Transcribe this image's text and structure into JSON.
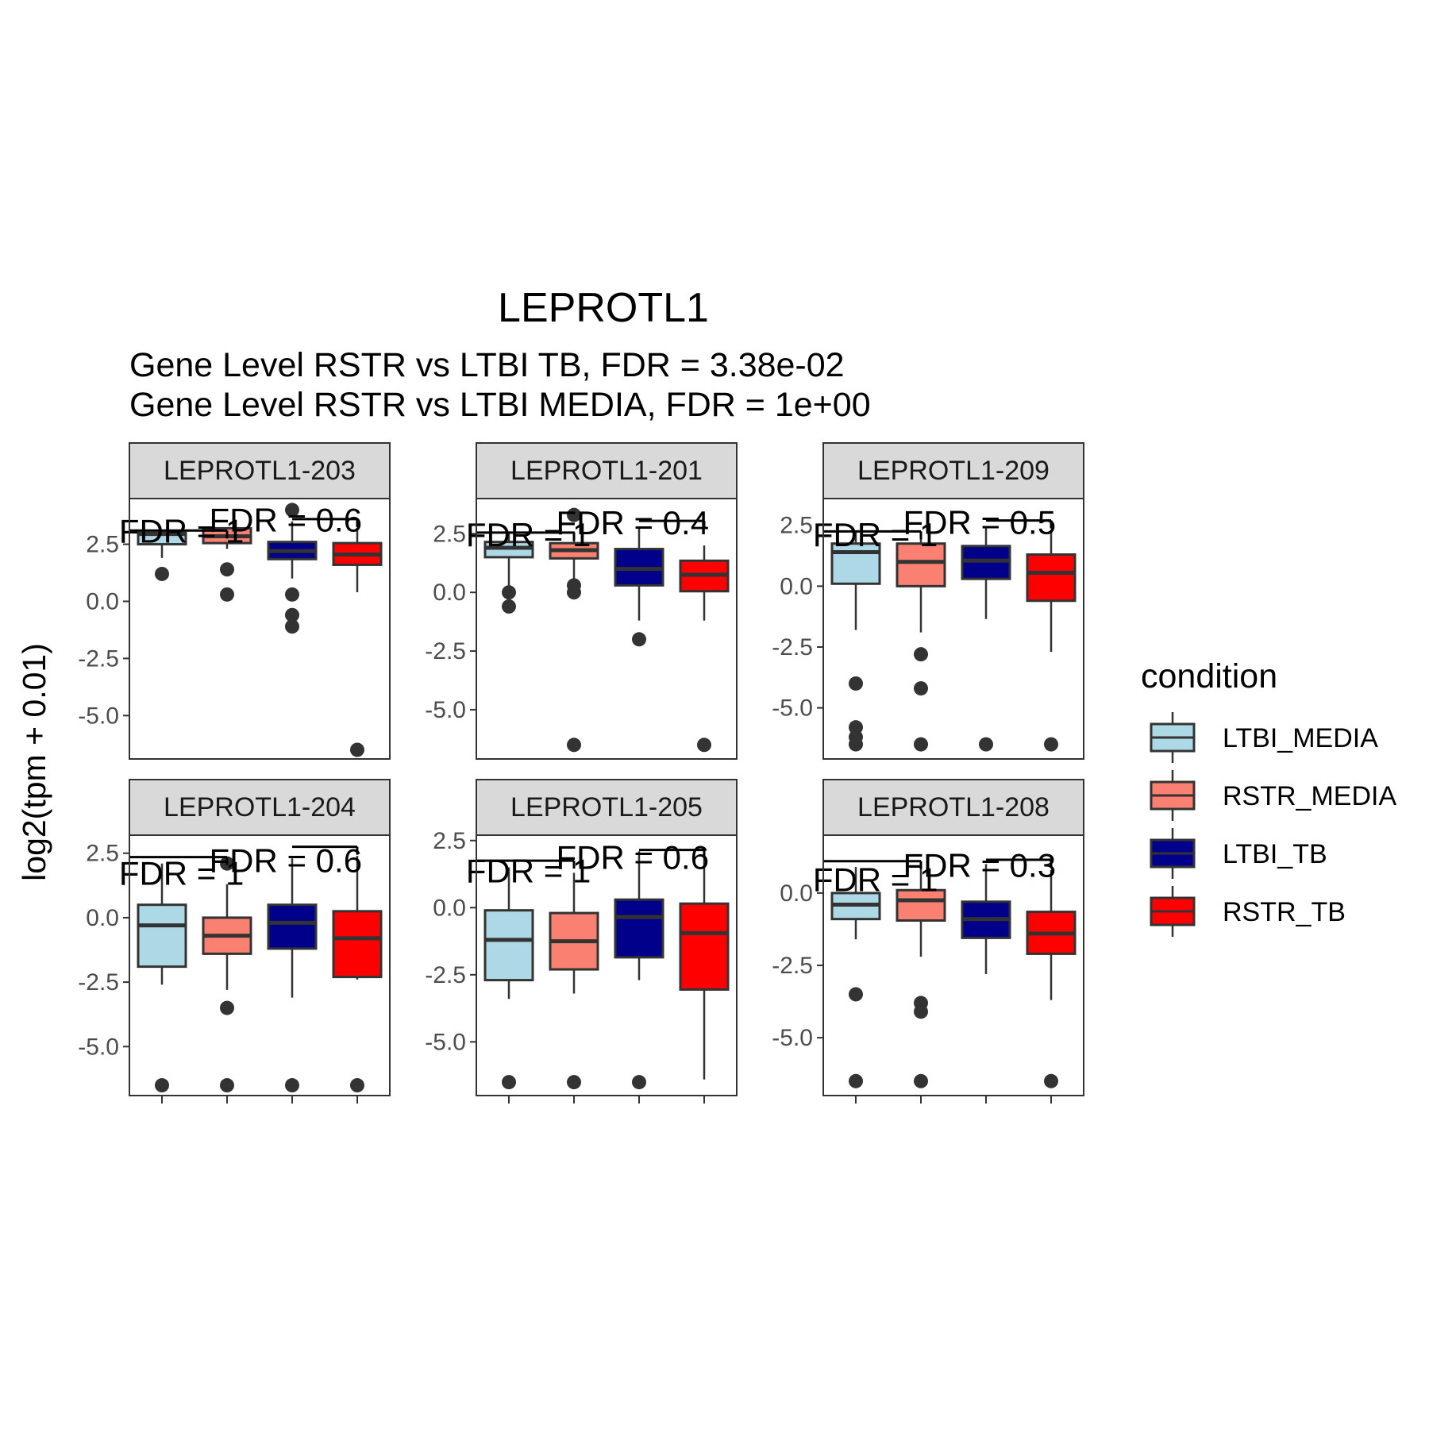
{
  "chart_data": {
    "type": "box",
    "title": "LEPROTL1",
    "subtitle_lines": [
      "Gene Level RSTR vs LTBI TB, FDR =  3.38e-02",
      "Gene Level RSTR vs LTBI MEDIA, FDR =  1e+00"
    ],
    "ylabel": "log2(tpm + 0.01)",
    "legend": {
      "title": "condition",
      "position": "right",
      "items": [
        {
          "name": "LTBI_MEDIA",
          "color": "#add8e6"
        },
        {
          "name": "RSTR_MEDIA",
          "color": "#fa8072"
        },
        {
          "name": "LTBI_TB",
          "color": "#00008b"
        },
        {
          "name": "RSTR_TB",
          "color": "#ff0000"
        }
      ]
    },
    "conditions": [
      "LTBI_MEDIA",
      "RSTR_MEDIA",
      "LTBI_TB",
      "RSTR_TB"
    ],
    "facets": [
      {
        "label": "LEPROTL1-203",
        "ylim": [
          -6.9,
          4.5
        ],
        "yticks": [
          "2.5",
          "0.0",
          "-2.5",
          "-5.0"
        ],
        "ytick_values": [
          2.5,
          0,
          -2.5,
          -5
        ],
        "fdr_labels": [
          {
            "text": "FDR =  1",
            "x": 1.3,
            "y": 3.05
          },
          {
            "text": "FDR =  0.6",
            "x": 2.9,
            "y": 3.55
          }
        ],
        "brackets": [
          {
            "from": 0.5,
            "to": 2.0,
            "y": 3.1
          },
          {
            "from": 3.0,
            "to": 4.0,
            "y": 3.6
          }
        ],
        "boxes": [
          {
            "group": "LTBI_MEDIA",
            "q1": 2.5,
            "median": 2.95,
            "q3": 3.0,
            "wlo": 1.9,
            "whi": 3.05,
            "outliers": [
              1.2
            ]
          },
          {
            "group": "RSTR_MEDIA",
            "q1": 2.55,
            "median": 2.85,
            "q3": 3.2,
            "wlo": 2.3,
            "whi": 3.25,
            "outliers": [
              1.4,
              0.3
            ]
          },
          {
            "group": "LTBI_TB",
            "q1": 1.85,
            "median": 2.2,
            "q3": 2.6,
            "wlo": 1.0,
            "whi": 3.5,
            "outliers": [
              4.0,
              0.3,
              -0.6,
              -1.1
            ]
          },
          {
            "group": "RSTR_TB",
            "q1": 1.6,
            "median": 2.05,
            "q3": 2.55,
            "wlo": 0.4,
            "whi": 3.1,
            "outliers": [
              -6.5
            ]
          }
        ]
      },
      {
        "label": "LEPROTL1-201",
        "ylim": [
          -7.1,
          4.0
        ],
        "yticks": [
          "2.5",
          "0.0",
          "-2.5",
          "-5.0"
        ],
        "ytick_values": [
          2.5,
          0,
          -2.5,
          -5
        ],
        "fdr_labels": [
          {
            "text": "FDR =  1",
            "x": 1.3,
            "y": 2.45
          },
          {
            "text": "FDR =  0.4",
            "x": 2.9,
            "y": 2.95
          }
        ],
        "brackets": [
          {
            "from": 0.5,
            "to": 2.0,
            "y": 2.55
          },
          {
            "from": 3.0,
            "to": 4.0,
            "y": 3.05
          }
        ],
        "boxes": [
          {
            "group": "LTBI_MEDIA",
            "q1": 1.5,
            "median": 1.9,
            "q3": 2.15,
            "wlo": 0.2,
            "whi": 2.5,
            "outliers": [
              0.0,
              -0.6
            ]
          },
          {
            "group": "RSTR_MEDIA",
            "q1": 1.45,
            "median": 1.8,
            "q3": 2.1,
            "wlo": 0.5,
            "whi": 2.6,
            "outliers": [
              3.3,
              0.3,
              0.0,
              -6.5
            ]
          },
          {
            "group": "LTBI_TB",
            "q1": 0.3,
            "median": 1.0,
            "q3": 1.85,
            "wlo": -1.2,
            "whi": 2.8,
            "outliers": [
              -2.0
            ]
          },
          {
            "group": "RSTR_TB",
            "q1": 0.05,
            "median": 0.75,
            "q3": 1.35,
            "wlo": -1.2,
            "whi": 2.0,
            "outliers": [
              -6.5
            ]
          }
        ]
      },
      {
        "label": "LEPROTL1-209",
        "ylim": [
          -7.1,
          3.6
        ],
        "yticks": [
          "2.5",
          "0.0",
          "-2.5",
          "-5.0"
        ],
        "ytick_values": [
          2.5,
          0,
          -2.5,
          -5
        ],
        "fdr_labels": [
          {
            "text": "FDR =  1",
            "x": 1.3,
            "y": 2.1
          },
          {
            "text": "FDR =  0.5",
            "x": 2.9,
            "y": 2.6
          }
        ],
        "brackets": [
          {
            "from": 0.5,
            "to": 2.0,
            "y": 2.25
          },
          {
            "from": 3.0,
            "to": 4.0,
            "y": 2.7
          }
        ],
        "boxes": [
          {
            "group": "LTBI_MEDIA",
            "q1": 0.1,
            "median": 1.4,
            "q3": 1.75,
            "wlo": -1.8,
            "whi": 2.2,
            "outliers": [
              -4.0,
              -5.8,
              -6.2,
              -6.5
            ]
          },
          {
            "group": "RSTR_MEDIA",
            "q1": 0.0,
            "median": 1.0,
            "q3": 1.75,
            "wlo": -1.9,
            "whi": 2.2,
            "outliers": [
              -2.8,
              -4.2,
              -6.5
            ]
          },
          {
            "group": "LTBI_TB",
            "q1": 0.3,
            "median": 1.05,
            "q3": 1.65,
            "wlo": -1.35,
            "whi": 2.4,
            "outliers": [
              -6.5
            ]
          },
          {
            "group": "RSTR_TB",
            "q1": -0.6,
            "median": 0.55,
            "q3": 1.3,
            "wlo": -2.7,
            "whi": 2.3,
            "outliers": [
              -6.5
            ]
          }
        ]
      },
      {
        "label": "LEPROTL1-204",
        "ylim": [
          -6.9,
          3.2
        ],
        "yticks": [
          "2.5",
          "0.0",
          "-2.5",
          "-5.0"
        ],
        "ytick_values": [
          2.5,
          0,
          -2.5,
          -5
        ],
        "fdr_labels": [
          {
            "text": "FDR =  1",
            "x": 1.3,
            "y": 1.7
          },
          {
            "text": "FDR =  0.6",
            "x": 2.9,
            "y": 2.2
          }
        ],
        "brackets": [
          {
            "from": 0.5,
            "to": 2.0,
            "y": 2.35
          },
          {
            "from": 3.0,
            "to": 4.0,
            "y": 2.75
          }
        ],
        "boxes": [
          {
            "group": "LTBI_MEDIA",
            "q1": -1.9,
            "median": -0.3,
            "q3": 0.5,
            "wlo": -2.6,
            "whi": 2.1,
            "outliers": [
              -6.5
            ]
          },
          {
            "group": "RSTR_MEDIA",
            "q1": -1.4,
            "median": -0.7,
            "q3": 0.0,
            "wlo": -2.8,
            "whi": 1.3,
            "outliers": [
              2.1,
              -3.5,
              -6.5
            ]
          },
          {
            "group": "LTBI_TB",
            "q1": -1.2,
            "median": -0.2,
            "q3": 0.5,
            "wlo": -3.1,
            "whi": 2.3,
            "outliers": [
              -6.5
            ]
          },
          {
            "group": "RSTR_TB",
            "q1": -2.3,
            "median": -0.8,
            "q3": 0.25,
            "wlo": -2.4,
            "whi": 2.4,
            "outliers": [
              -6.5
            ]
          }
        ]
      },
      {
        "label": "LEPROTL1-205",
        "ylim": [
          -7.0,
          2.7
        ],
        "yticks": [
          "2.5",
          "0.0",
          "-2.5",
          "-5.0"
        ],
        "ytick_values": [
          2.5,
          0,
          -2.5,
          -5
        ],
        "fdr_labels": [
          {
            "text": "FDR =  1",
            "x": 1.3,
            "y": 1.35
          },
          {
            "text": "FDR =  0.6",
            "x": 2.9,
            "y": 1.85
          }
        ],
        "brackets": [
          {
            "from": 0.5,
            "to": 2.0,
            "y": 1.75
          },
          {
            "from": 3.0,
            "to": 4.0,
            "y": 2.15
          }
        ],
        "boxes": [
          {
            "group": "LTBI_MEDIA",
            "q1": -2.7,
            "median": -1.2,
            "q3": -0.1,
            "wlo": -3.4,
            "whi": 1.5,
            "outliers": [
              -6.5
            ]
          },
          {
            "group": "RSTR_MEDIA",
            "q1": -2.3,
            "median": -1.25,
            "q3": -0.2,
            "wlo": -3.2,
            "whi": 1.3,
            "outliers": [
              -6.5
            ]
          },
          {
            "group": "LTBI_TB",
            "q1": -1.85,
            "median": -0.35,
            "q3": 0.3,
            "wlo": -2.7,
            "whi": 2.1,
            "outliers": [
              -6.5
            ]
          },
          {
            "group": "RSTR_TB",
            "q1": -3.05,
            "median": -0.95,
            "q3": 0.15,
            "wlo": -6.4,
            "whi": 2.1,
            "outliers": []
          }
        ]
      },
      {
        "label": "LEPROTL1-208",
        "ylim": [
          -7.0,
          2.0
        ],
        "yticks": [
          "0.0",
          "-2.5",
          "-5.0"
        ],
        "ytick_values": [
          0,
          -2.5,
          -5
        ],
        "fdr_labels": [
          {
            "text": "FDR =  1",
            "x": 1.3,
            "y": 0.45
          },
          {
            "text": "FDR =  0.3",
            "x": 2.9,
            "y": 0.95
          }
        ],
        "brackets": [
          {
            "from": 0.5,
            "to": 2.0,
            "y": 1.1
          },
          {
            "from": 3.0,
            "to": 4.0,
            "y": 1.15
          }
        ],
        "boxes": [
          {
            "group": "LTBI_MEDIA",
            "q1": -0.9,
            "median": -0.4,
            "q3": 0.0,
            "wlo": -1.6,
            "whi": 0.9,
            "outliers": [
              -3.5,
              -6.5
            ]
          },
          {
            "group": "RSTR_MEDIA",
            "q1": -0.95,
            "median": -0.25,
            "q3": 0.1,
            "wlo": -2.2,
            "whi": 0.9,
            "outliers": [
              -3.8,
              -4.1,
              -6.5
            ]
          },
          {
            "group": "LTBI_TB",
            "q1": -1.55,
            "median": -0.9,
            "q3": -0.3,
            "wlo": -2.8,
            "whi": 1.0,
            "outliers": []
          },
          {
            "group": "RSTR_TB",
            "q1": -2.1,
            "median": -1.4,
            "q3": -0.65,
            "wlo": -3.7,
            "whi": 0.8,
            "outliers": [
              -6.5
            ]
          }
        ]
      }
    ]
  }
}
